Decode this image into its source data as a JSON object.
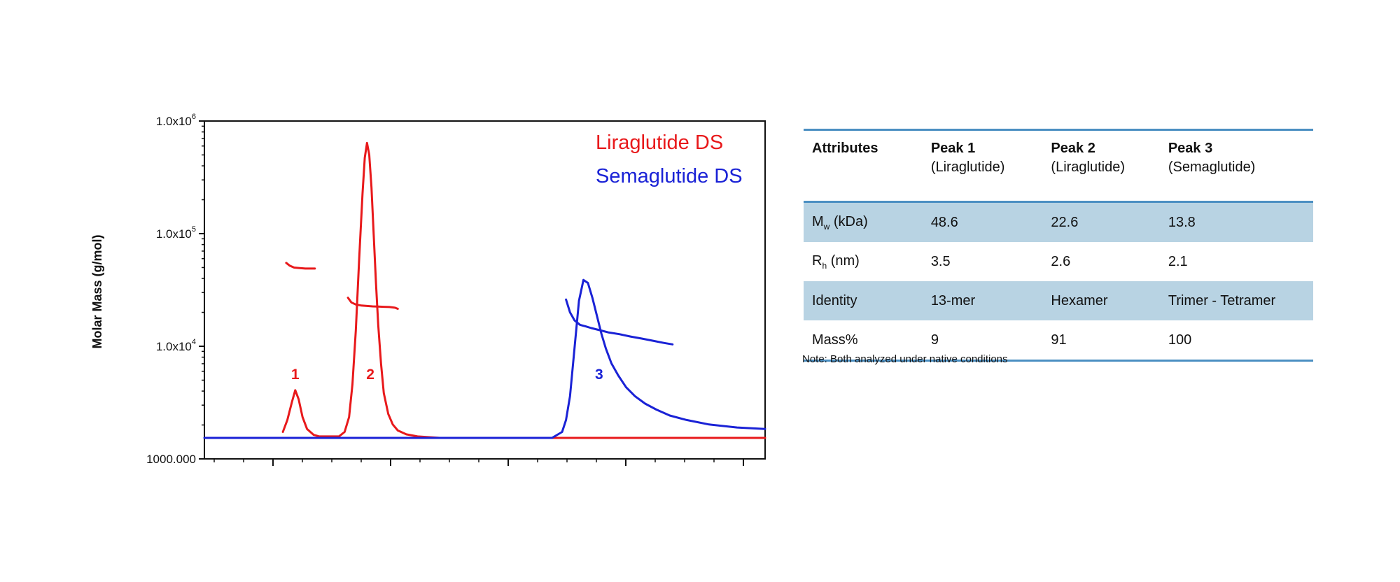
{
  "chart_data": {
    "type": "line",
    "ylabel": "Molar Mass (g/mol)",
    "yscale": "log",
    "ylim": [
      1000,
      1000000
    ],
    "yticks": [
      {
        "value": 1000000,
        "base": "1.0x10",
        "exp": "6"
      },
      {
        "value": 100000,
        "base": "1.0x10",
        "exp": "5"
      },
      {
        "value": 10000,
        "base": "1.0x10",
        "exp": "4"
      },
      {
        "value": 1000,
        "base": "1000.000",
        "exp": ""
      }
    ],
    "xlim": [
      0,
      1
    ],
    "legend": [
      {
        "name": "Liraglutide DS",
        "color": "#e8191b"
      },
      {
        "name": "Semaglutide DS",
        "color": "#1a22d6"
      }
    ],
    "peak_labels": [
      {
        "text": "1",
        "x": 0.162,
        "color": "#e8191b"
      },
      {
        "text": "2",
        "x": 0.296,
        "color": "#e8191b"
      },
      {
        "text": "3",
        "x": 0.704,
        "color": "#1a22d6"
      }
    ],
    "series": [
      {
        "name": "Liraglutide DS",
        "role": "signal",
        "color": "#e8191b",
        "x": [
          0.14,
          0.148,
          0.156,
          0.162,
          0.168,
          0.175,
          0.183,
          0.195,
          0.205,
          0.24,
          0.25,
          0.258,
          0.264,
          0.27,
          0.276,
          0.282,
          0.286,
          0.29,
          0.294,
          0.298,
          0.302,
          0.306,
          0.31,
          0.315,
          0.32,
          0.328,
          0.336,
          0.345,
          0.36,
          0.38,
          0.42,
          0.5,
          0.65,
          0.8,
          1.0
        ],
        "y": [
          0.02,
          0.06,
          0.12,
          0.16,
          0.13,
          0.07,
          0.03,
          0.01,
          0.005,
          0.005,
          0.02,
          0.07,
          0.18,
          0.36,
          0.6,
          0.82,
          0.94,
          0.99,
          0.95,
          0.84,
          0.68,
          0.52,
          0.38,
          0.25,
          0.15,
          0.08,
          0.045,
          0.025,
          0.012,
          0.005,
          0.0,
          0.0,
          0.0,
          0.0,
          0.0
        ]
      },
      {
        "name": "Semaglutide DS",
        "role": "signal",
        "color": "#1a22d6",
        "x": [
          0.0,
          0.2,
          0.4,
          0.62,
          0.638,
          0.645,
          0.652,
          0.66,
          0.668,
          0.676,
          0.684,
          0.692,
          0.7,
          0.708,
          0.716,
          0.726,
          0.738,
          0.752,
          0.768,
          0.786,
          0.806,
          0.83,
          0.86,
          0.9,
          0.95,
          1.0
        ],
        "y": [
          0.0,
          0.0,
          0.0,
          0.0,
          0.02,
          0.06,
          0.14,
          0.3,
          0.46,
          0.53,
          0.52,
          0.47,
          0.41,
          0.35,
          0.3,
          0.25,
          0.21,
          0.17,
          0.14,
          0.115,
          0.095,
          0.075,
          0.06,
          0.045,
          0.035,
          0.03
        ]
      },
      {
        "name": "Liraglutide DS",
        "role": "molar mass, peak 1",
        "color": "#e8191b",
        "x": [
          0.146,
          0.152,
          0.16,
          0.17,
          0.18,
          0.197
        ],
        "y": [
          55000,
          52000,
          50000,
          49500,
          49000,
          49000
        ]
      },
      {
        "name": "Liraglutide DS",
        "role": "molar mass, peak 2",
        "color": "#e8191b",
        "x": [
          0.256,
          0.262,
          0.27,
          0.28,
          0.29,
          0.3,
          0.31,
          0.32,
          0.33,
          0.34,
          0.345
        ],
        "y": [
          27000,
          24500,
          23500,
          23000,
          22800,
          22600,
          22500,
          22400,
          22300,
          22000,
          21500
        ]
      },
      {
        "name": "Semaglutide DS",
        "role": "molar mass, peak 3",
        "color": "#1a22d6",
        "x": [
          0.645,
          0.652,
          0.66,
          0.67,
          0.68,
          0.69,
          0.7,
          0.71,
          0.72,
          0.74,
          0.76,
          0.78,
          0.8,
          0.82,
          0.835
        ],
        "y": [
          26000,
          20000,
          17000,
          15500,
          15000,
          14500,
          14100,
          13700,
          13300,
          12800,
          12200,
          11700,
          11200,
          10700,
          10400
        ]
      }
    ]
  },
  "table": {
    "headers": [
      {
        "main": "Attributes",
        "sub": ""
      },
      {
        "main": "Peak 1",
        "sub": "(Liraglutide)"
      },
      {
        "main": "Peak 2",
        "sub": "(Liraglutide)"
      },
      {
        "main": "Peak 3",
        "sub": " (Semaglutide)"
      }
    ],
    "rows": [
      {
        "label": "M",
        "label_sub": "w",
        "label_rest": " (kDa)",
        "values": [
          "48.6",
          "22.6",
          "13.8"
        ]
      },
      {
        "label": "R",
        "label_sub": "h",
        "label_rest": " (nm)",
        "values": [
          "3.5",
          "2.6",
          "2.1"
        ]
      },
      {
        "label": "Identity",
        "label_sub": "",
        "label_rest": "",
        "values": [
          "13-mer",
          "Hexamer",
          "Trimer - Tetramer"
        ]
      },
      {
        "label": "Mass%",
        "label_sub": "",
        "label_rest": "",
        "values": [
          "9",
          "91",
          "100"
        ]
      }
    ],
    "note": "Note: Both analyzed under native conditions",
    "shade_color": "#b8d3e3",
    "rule_color": "#4b8fc2"
  }
}
